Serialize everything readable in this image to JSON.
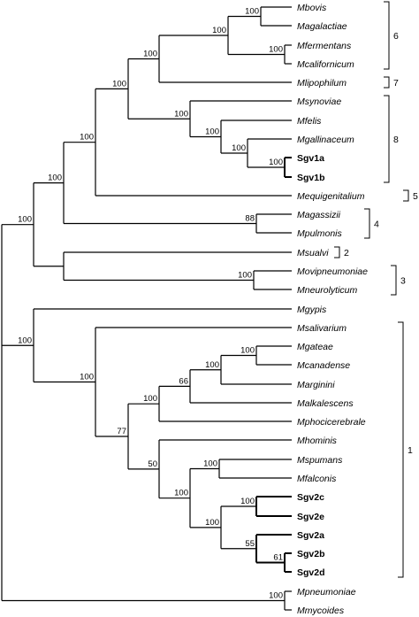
{
  "taxa": [
    "Mbovis",
    "Magalactiae",
    "Mfermentans",
    "Mcalifornicum",
    "Mlipophilum",
    "Msynoviae",
    "Mfelis",
    "Mgallinaceum",
    "Sgv1a",
    "Sgv1b",
    "Mequigenitalium",
    "Magassizii",
    "Mpulmonis",
    "Msualvi",
    "Movipneumoniae",
    "Mneurolyticum",
    "Mgypis",
    "Msalivarium",
    "Mgateae",
    "Mcanadense",
    "Marginini",
    "Malkalescens",
    "Mphocicerebrale",
    "Mhominis",
    "Mspumans",
    "Mfalconis",
    "Sgv2c",
    "Sgv2e",
    "Sgv2a",
    "Sgv2b",
    "Sgv2d",
    "Mpneumoniae",
    "Mmycoides"
  ],
  "strains": [
    "Sgv1a",
    "Sgv1b",
    "Sgv2c",
    "Sgv2e",
    "Sgv2a",
    "Sgv2b",
    "Sgv2d"
  ],
  "bootstrap": [
    "100",
    "100",
    "100",
    "100",
    "100",
    "100",
    "100",
    "100",
    "100",
    "100",
    "88",
    "100",
    "100",
    "100",
    "100",
    "100",
    "66",
    "100",
    "100",
    "100",
    "61",
    "55",
    "100",
    "100",
    "50",
    "77",
    "100",
    "100",
    "100"
  ],
  "clades": [
    "6",
    "7",
    "8",
    "5",
    "4",
    "2",
    "3",
    "1"
  ]
}
